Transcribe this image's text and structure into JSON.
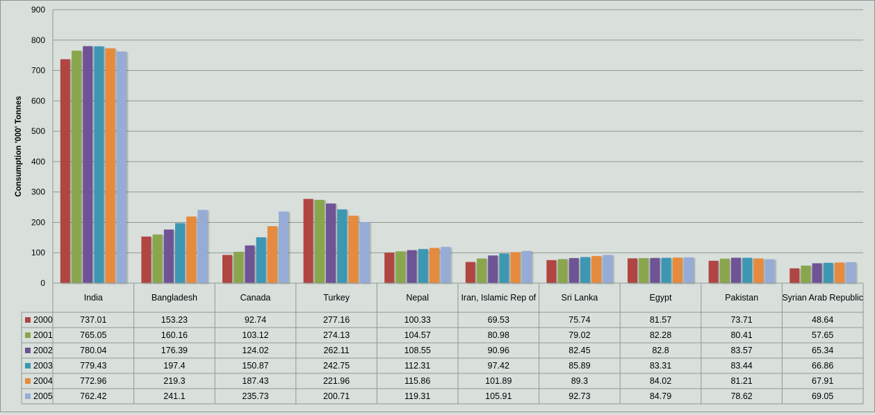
{
  "chart_data": {
    "type": "bar",
    "title": "",
    "xlabel": "",
    "ylabel": "Consumption '000' Tonnes",
    "ylim": [
      0,
      900
    ],
    "yticks": [
      0,
      100,
      200,
      300,
      400,
      500,
      600,
      700,
      800,
      900
    ],
    "grid": true,
    "legend": "data-table",
    "categories": [
      "India",
      "Bangladesh",
      "Canada",
      "Turkey",
      "Nepal",
      "Iran, Islamic Rep of",
      "Sri Lanka",
      "Egypt",
      "Pakistan",
      "Syrian Arab Republic"
    ],
    "series": [
      {
        "name": "2000",
        "color": "#b04442",
        "values": [
          737.01,
          153.23,
          92.74,
          277.16,
          100.33,
          69.53,
          75.74,
          81.57,
          73.71,
          48.64
        ]
      },
      {
        "name": "2001",
        "color": "#8aa64e",
        "values": [
          765.05,
          160.16,
          103.12,
          274.13,
          104.57,
          80.98,
          79.02,
          82.28,
          80.41,
          57.65
        ]
      },
      {
        "name": "2002",
        "color": "#6e5295",
        "values": [
          780.04,
          176.39,
          124.02,
          262.11,
          108.55,
          90.96,
          82.45,
          82.8,
          83.57,
          65.34
        ]
      },
      {
        "name": "2003",
        "color": "#3c97b3",
        "values": [
          779.43,
          197.4,
          150.87,
          242.75,
          112.31,
          97.42,
          85.89,
          83.31,
          83.44,
          66.86
        ]
      },
      {
        "name": "2004",
        "color": "#e68a3e",
        "values": [
          772.96,
          219.3,
          187.43,
          221.96,
          115.86,
          101.89,
          89.3,
          84.02,
          81.21,
          67.91
        ]
      },
      {
        "name": "2005",
        "color": "#96acd6",
        "values": [
          762.42,
          241.1,
          235.73,
          200.71,
          119.31,
          105.91,
          92.73,
          84.79,
          78.62,
          69.05
        ]
      }
    ]
  }
}
